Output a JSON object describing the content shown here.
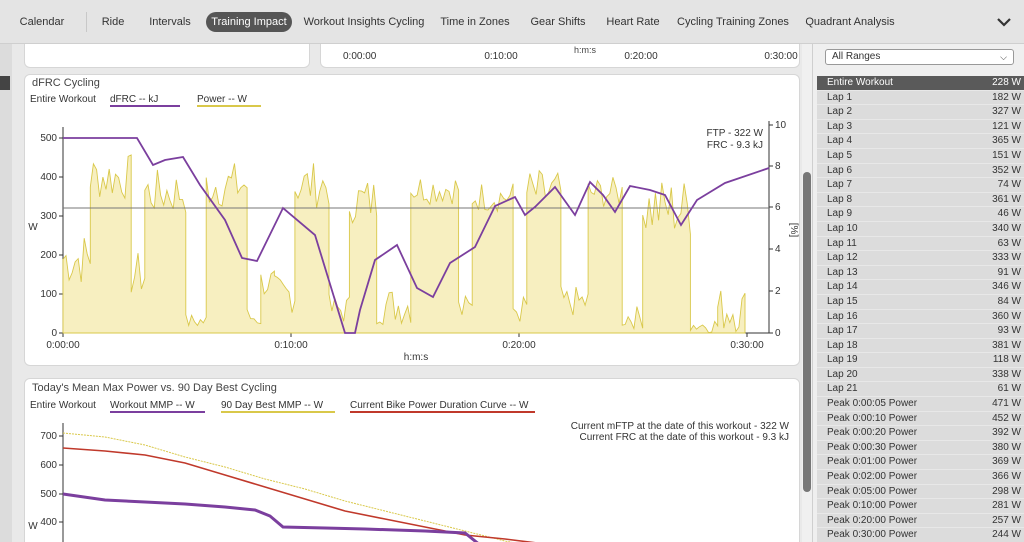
{
  "tabs": [
    {
      "label": "Calendar",
      "active": false
    },
    {
      "label": "Ride",
      "active": false
    },
    {
      "label": "Intervals",
      "active": false
    },
    {
      "label": "Training Impact",
      "active": true
    },
    {
      "label": "Workout Insights Cycling",
      "active": false
    },
    {
      "label": "Time in Zones",
      "active": false
    },
    {
      "label": "Gear Shifts",
      "active": false
    },
    {
      "label": "Heart Rate",
      "active": false
    },
    {
      "label": "Cycling Training Zones",
      "active": false
    },
    {
      "label": "Quadrant Analysis",
      "active": false
    }
  ],
  "top_axis": {
    "ticks": [
      "0:00:00",
      "0:10:00",
      "0:20:00",
      "0:30:00"
    ],
    "label": "h:m:s"
  },
  "dfrc": {
    "title": "dFRC Cycling",
    "range_label": "Entire Workout",
    "legend": [
      {
        "label": "dFRC  -- kJ",
        "color": "#7b3f9e"
      },
      {
        "label": "Power  -- W",
        "color": "#d9c84a"
      }
    ],
    "annotation_ftp": "FTP - 322 W",
    "annotation_frc": "FRC - 9.3 kJ",
    "xlabel": "h:m:s",
    "ylabel_left": "W",
    "ylabel_right": "[%]",
    "y_left_ticks": [
      "0",
      "100",
      "200",
      "300",
      "400",
      "500"
    ],
    "y_right_ticks": [
      "0",
      "2",
      "4",
      "6",
      "8",
      "10"
    ],
    "x_ticks": [
      "0:00:00",
      "0:10:00",
      "0:20:00",
      "0:30:00"
    ]
  },
  "mmp": {
    "title": "Today's Mean Max Power vs. 90 Day Best Cycling",
    "range_label": "Entire Workout",
    "legend": [
      {
        "label": "Workout MMP  -- W",
        "color": "#7b3f9e"
      },
      {
        "label": "90 Day Best MMP  -- W",
        "color": "#d9c84a"
      },
      {
        "label": "Current Bike Power Duration Curve  -- W",
        "color": "#c0392b"
      }
    ],
    "annotation_ftp": "Current mFTP at the date of this workout - 322 W",
    "annotation_frc": "Current FRC at the date of this workout - 9.3 kJ",
    "ylabel": "W",
    "y_ticks": [
      "400",
      "500",
      "600",
      "700"
    ]
  },
  "range_select": {
    "value": "All Ranges"
  },
  "laps": [
    {
      "label": "Entire Workout",
      "value": "228 W",
      "selected": true
    },
    {
      "label": "Lap 1",
      "value": "182 W"
    },
    {
      "label": "Lap 2",
      "value": "327 W"
    },
    {
      "label": "Lap 3",
      "value": "121 W"
    },
    {
      "label": "Lap 4",
      "value": "365 W"
    },
    {
      "label": "Lap 5",
      "value": "151 W"
    },
    {
      "label": "Lap 6",
      "value": "352 W"
    },
    {
      "label": "Lap 7",
      "value": "74 W"
    },
    {
      "label": "Lap 8",
      "value": "361 W"
    },
    {
      "label": "Lap 9",
      "value": "46 W"
    },
    {
      "label": "Lap 10",
      "value": "340 W"
    },
    {
      "label": "Lap 11",
      "value": "63 W"
    },
    {
      "label": "Lap 12",
      "value": "333 W"
    },
    {
      "label": "Lap 13",
      "value": "91 W"
    },
    {
      "label": "Lap 14",
      "value": "346 W"
    },
    {
      "label": "Lap 15",
      "value": "84 W"
    },
    {
      "label": "Lap 16",
      "value": "360 W"
    },
    {
      "label": "Lap 17",
      "value": "93 W"
    },
    {
      "label": "Lap 18",
      "value": "381 W"
    },
    {
      "label": "Lap 19",
      "value": "118 W"
    },
    {
      "label": "Lap 20",
      "value": "338 W"
    },
    {
      "label": "Lap 21",
      "value": "61 W"
    },
    {
      "label": "Peak 0:00:05 Power",
      "value": "471 W"
    },
    {
      "label": "Peak 0:00:10 Power",
      "value": "452 W"
    },
    {
      "label": "Peak 0:00:20 Power",
      "value": "392 W"
    },
    {
      "label": "Peak 0:00:30 Power",
      "value": "380 W"
    },
    {
      "label": "Peak 0:01:00 Power",
      "value": "369 W"
    },
    {
      "label": "Peak 0:02:00 Power",
      "value": "366 W"
    },
    {
      "label": "Peak 0:05:00 Power",
      "value": "298 W"
    },
    {
      "label": "Peak 0:10:00 Power",
      "value": "281 W"
    },
    {
      "label": "Peak 0:20:00 Power",
      "value": "257 W"
    },
    {
      "label": "Peak 0:30:00 Power",
      "value": "244 W"
    }
  ]
}
